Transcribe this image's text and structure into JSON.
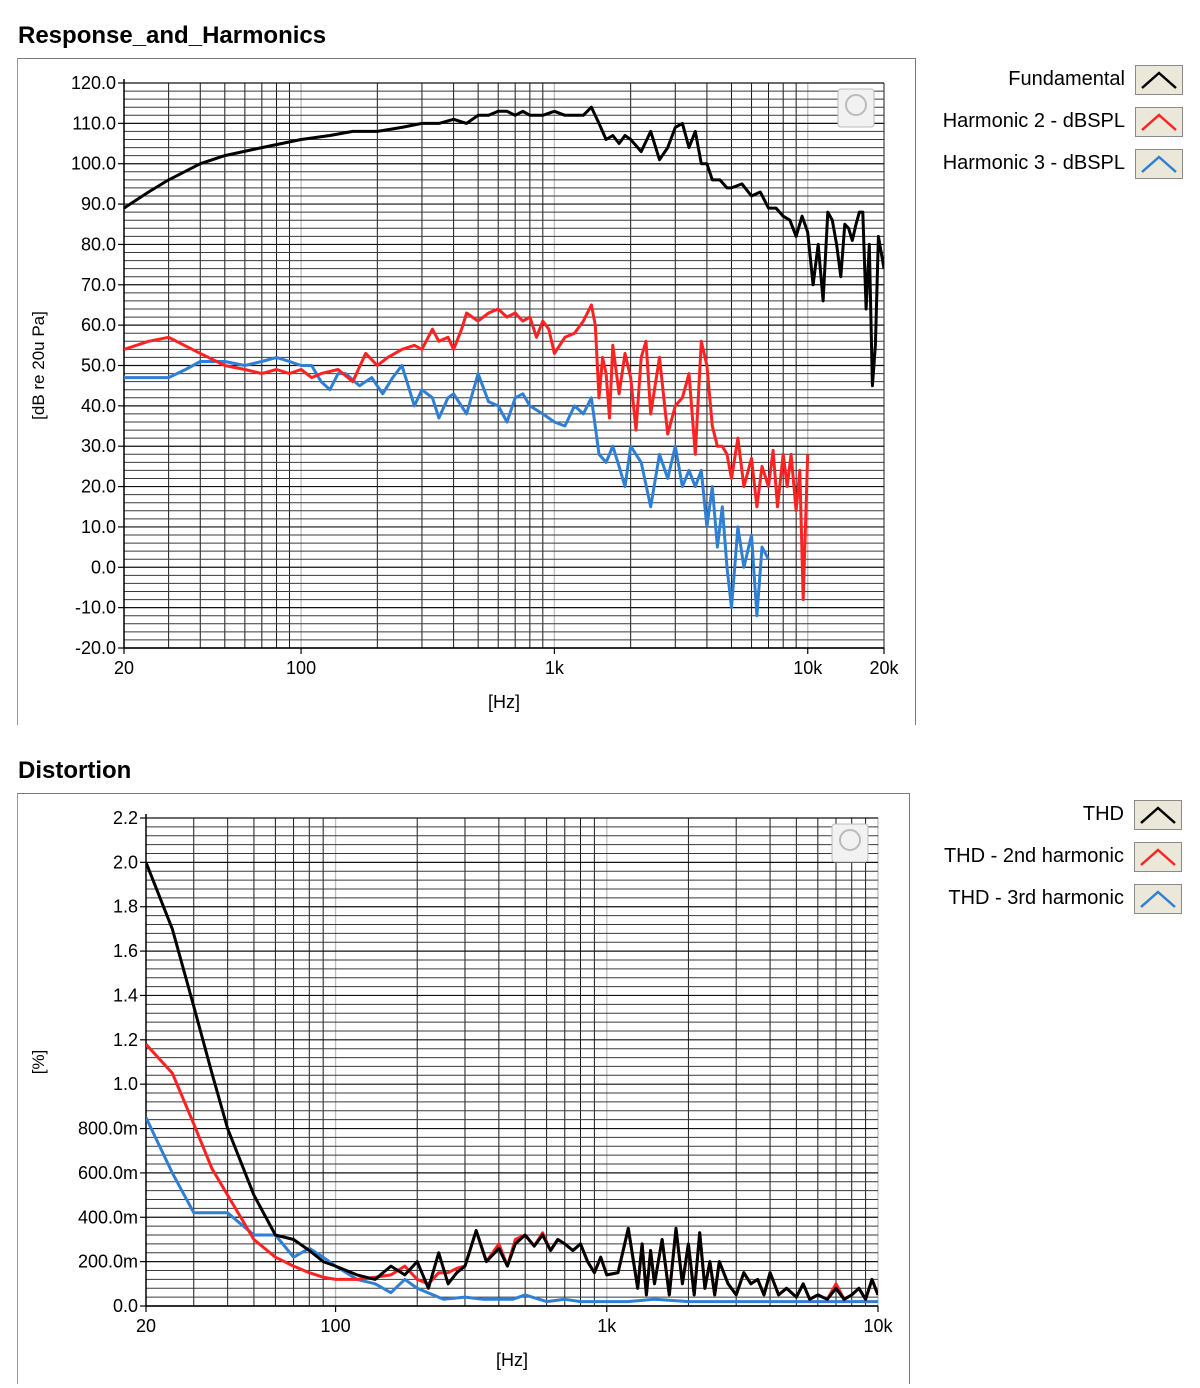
{
  "chart_data": [
    {
      "type": "line",
      "title": "Response_and_Harmonics",
      "xlabel": "[Hz]",
      "ylabel": "[dB re 20u Pa]",
      "x_scale": "log",
      "xlim": [
        20,
        20000
      ],
      "ylim": [
        -20,
        120
      ],
      "x_ticks": [
        20,
        100,
        1000,
        10000,
        20000
      ],
      "x_tick_labels": [
        "20",
        "100",
        "1k",
        "10k",
        "20k"
      ],
      "y_ticks": [
        -20,
        -10,
        0,
        10,
        20,
        30,
        40,
        50,
        60,
        70,
        80,
        90,
        100,
        110,
        120
      ],
      "y_tick_labels": [
        "-20.0",
        "-10.0",
        "0.0",
        "10.0",
        "20.0",
        "30.0",
        "40.0",
        "50.0",
        "60.0",
        "70.0",
        "80.0",
        "90.0",
        "100.0",
        "110.0",
        "120.0"
      ],
      "grid": true,
      "legend_position": "right",
      "series": [
        {
          "name": "Fundamental",
          "color": "#000000",
          "x": [
            20,
            25,
            30,
            40,
            50,
            70,
            100,
            130,
            160,
            200,
            250,
            300,
            350,
            400,
            450,
            500,
            550,
            600,
            650,
            700,
            750,
            800,
            900,
            1000,
            1100,
            1200,
            1300,
            1400,
            1500,
            1600,
            1700,
            1800,
            1900,
            2000,
            2200,
            2400,
            2600,
            2800,
            3000,
            3200,
            3400,
            3600,
            3800,
            4000,
            4200,
            4500,
            4800,
            5000,
            5500,
            6000,
            6500,
            7000,
            7500,
            8000,
            8500,
            9000,
            9500,
            10000,
            10500,
            11000,
            11500,
            12000,
            12500,
            13000,
            13500,
            14000,
            14500,
            15000,
            15500,
            16000,
            16500,
            17000,
            17500,
            18000,
            18500,
            19000,
            19500,
            20000
          ],
          "y": [
            89,
            93,
            96,
            100,
            102,
            104,
            106,
            107,
            108,
            108,
            109,
            110,
            110,
            111,
            110,
            112,
            112,
            113,
            113,
            112,
            113,
            112,
            112,
            113,
            112,
            112,
            112,
            114,
            110,
            106,
            107,
            105,
            107,
            106,
            103,
            108,
            101,
            104,
            109,
            110,
            104,
            108,
            100,
            100,
            96,
            96,
            94,
            94,
            95,
            92,
            93,
            89,
            89,
            87,
            86,
            82,
            87,
            83,
            70,
            80,
            66,
            88,
            86,
            80,
            72,
            85,
            84,
            81,
            85,
            88,
            88,
            64,
            80,
            45,
            55,
            82,
            78,
            74
          ]
        },
        {
          "name": "Harmonic 2 - dBSPL",
          "color": "#ff2222",
          "x": [
            20,
            25,
            30,
            40,
            50,
            60,
            70,
            80,
            90,
            100,
            110,
            120,
            140,
            160,
            180,
            200,
            220,
            250,
            280,
            300,
            330,
            350,
            380,
            400,
            430,
            450,
            500,
            550,
            600,
            650,
            700,
            750,
            800,
            850,
            900,
            950,
            1000,
            1100,
            1200,
            1300,
            1400,
            1450,
            1500,
            1550,
            1600,
            1650,
            1700,
            1800,
            1900,
            2000,
            2100,
            2200,
            2300,
            2400,
            2600,
            2800,
            3000,
            3200,
            3400,
            3600,
            3800,
            4000,
            4200,
            4400,
            4600,
            4800,
            5000,
            5300,
            5600,
            6000,
            6300,
            6600,
            7000,
            7300,
            7600,
            8000,
            8300,
            8600,
            9000,
            9300,
            9600,
            10000
          ],
          "y": [
            54,
            56,
            57,
            53,
            50,
            49,
            48,
            49,
            48,
            49,
            47,
            48,
            49,
            46,
            53,
            50,
            52,
            54,
            55,
            54,
            59,
            56,
            57,
            54,
            59,
            63,
            61,
            63,
            64,
            62,
            63,
            61,
            62,
            57,
            61,
            59,
            53,
            57,
            58,
            61,
            65,
            60,
            42,
            52,
            48,
            37,
            55,
            43,
            53,
            47,
            34,
            52,
            56,
            38,
            52,
            33,
            40,
            42,
            48,
            28,
            56,
            50,
            35,
            30,
            30,
            28,
            22,
            32,
            20,
            27,
            15,
            25,
            20,
            29,
            15,
            28,
            20,
            28,
            14,
            24,
            -8,
            28
          ]
        },
        {
          "name": "Harmonic 3 - dBSPL",
          "color": "#2f7fd4",
          "x": [
            20,
            25,
            30,
            35,
            40,
            45,
            50,
            60,
            70,
            80,
            90,
            100,
            110,
            120,
            130,
            140,
            150,
            170,
            190,
            210,
            230,
            250,
            280,
            300,
            330,
            350,
            380,
            400,
            450,
            500,
            550,
            600,
            650,
            700,
            750,
            800,
            900,
            1000,
            1100,
            1200,
            1300,
            1400,
            1500,
            1600,
            1700,
            1800,
            1900,
            2000,
            2200,
            2400,
            2600,
            2800,
            3000,
            3200,
            3400,
            3600,
            3800,
            4000,
            4200,
            4400,
            4600,
            4800,
            5000,
            5300,
            5600,
            6000,
            6300,
            6600,
            7000
          ],
          "y": [
            47,
            47,
            47,
            49,
            51,
            51,
            51,
            50,
            51,
            52,
            51,
            50,
            50,
            46,
            44,
            48,
            48,
            45,
            47,
            43,
            47,
            50,
            40,
            44,
            42,
            37,
            42,
            43,
            38,
            48,
            41,
            40,
            36,
            42,
            43,
            40,
            38,
            36,
            35,
            40,
            38,
            42,
            28,
            26,
            30,
            25,
            20,
            30,
            26,
            15,
            28,
            22,
            30,
            20,
            24,
            20,
            24,
            10,
            20,
            5,
            15,
            0,
            -10,
            10,
            0,
            8,
            -12,
            5,
            2
          ]
        }
      ]
    },
    {
      "type": "line",
      "title": "Distortion",
      "xlabel": "[Hz]",
      "ylabel": "[%]",
      "x_scale": "log",
      "xlim": [
        20,
        10000
      ],
      "ylim": [
        0,
        2.2
      ],
      "x_ticks": [
        20,
        100,
        1000,
        10000
      ],
      "x_tick_labels": [
        "20",
        "100",
        "1k",
        "10k"
      ],
      "y_ticks": [
        0,
        0.2,
        0.4,
        0.6,
        0.8,
        1.0,
        1.2,
        1.4,
        1.6,
        1.8,
        2.0,
        2.2
      ],
      "y_tick_labels": [
        "0.0",
        "200.0m",
        "400.0m",
        "600.0m",
        "800.0m",
        "1.0",
        "1.2",
        "1.4",
        "1.6",
        "1.8",
        "2.0",
        "2.2"
      ],
      "grid": true,
      "legend_position": "right",
      "series": [
        {
          "name": "THD",
          "color": "#000000",
          "x": [
            20,
            25,
            30,
            35,
            40,
            50,
            60,
            70,
            80,
            90,
            100,
            120,
            140,
            160,
            180,
            200,
            220,
            240,
            260,
            280,
            300,
            330,
            360,
            400,
            430,
            460,
            500,
            540,
            580,
            620,
            660,
            700,
            750,
            800,
            850,
            900,
            950,
            1000,
            1100,
            1200,
            1300,
            1350,
            1400,
            1450,
            1500,
            1600,
            1700,
            1800,
            1900,
            2000,
            2100,
            2200,
            2300,
            2400,
            2500,
            2600,
            2800,
            3000,
            3200,
            3400,
            3600,
            3800,
            4000,
            4300,
            4600,
            5000,
            5300,
            5600,
            6000,
            6500,
            7000,
            7500,
            8000,
            8500,
            9000,
            9500,
            10000
          ],
          "y": [
            2.0,
            1.7,
            1.35,
            1.05,
            0.8,
            0.5,
            0.32,
            0.3,
            0.25,
            0.2,
            0.18,
            0.14,
            0.12,
            0.18,
            0.14,
            0.2,
            0.08,
            0.24,
            0.1,
            0.15,
            0.18,
            0.34,
            0.2,
            0.26,
            0.18,
            0.28,
            0.32,
            0.27,
            0.32,
            0.25,
            0.3,
            0.28,
            0.25,
            0.28,
            0.2,
            0.15,
            0.22,
            0.14,
            0.15,
            0.35,
            0.08,
            0.28,
            0.05,
            0.25,
            0.1,
            0.3,
            0.05,
            0.35,
            0.1,
            0.28,
            0.05,
            0.33,
            0.08,
            0.2,
            0.05,
            0.2,
            0.1,
            0.05,
            0.15,
            0.1,
            0.12,
            0.05,
            0.15,
            0.05,
            0.08,
            0.04,
            0.1,
            0.03,
            0.05,
            0.03,
            0.08,
            0.03,
            0.05,
            0.08,
            0.03,
            0.12,
            0.05
          ]
        },
        {
          "name": "THD - 2nd harmonic",
          "color": "#ff2222",
          "x": [
            20,
            25,
            30,
            35,
            40,
            50,
            60,
            70,
            80,
            90,
            100,
            120,
            140,
            160,
            180,
            200,
            220,
            240,
            260,
            280,
            300,
            330,
            360,
            400,
            430,
            460,
            500,
            540,
            580,
            620,
            660,
            700,
            750,
            800,
            850,
            900,
            950,
            1000,
            1100,
            1200,
            1300,
            1350,
            1400,
            1450,
            1500,
            1600,
            1700,
            1800,
            1900,
            2000,
            2100,
            2200,
            2300,
            2400,
            2500,
            2600,
            2800,
            3000,
            3200,
            3400,
            3600,
            3800,
            4000,
            4300,
            4600,
            5000,
            5300,
            5600,
            6000,
            6500,
            7000,
            7500,
            8000,
            8500,
            9000,
            9500,
            10000
          ],
          "y": [
            1.18,
            1.05,
            0.82,
            0.62,
            0.5,
            0.3,
            0.22,
            0.18,
            0.15,
            0.13,
            0.12,
            0.12,
            0.13,
            0.14,
            0.18,
            0.12,
            0.1,
            0.15,
            0.15,
            0.17,
            0.18,
            0.34,
            0.2,
            0.28,
            0.18,
            0.3,
            0.32,
            0.27,
            0.33,
            0.25,
            0.3,
            0.28,
            0.25,
            0.28,
            0.2,
            0.15,
            0.22,
            0.14,
            0.15,
            0.35,
            0.08,
            0.28,
            0.05,
            0.25,
            0.1,
            0.3,
            0.05,
            0.35,
            0.1,
            0.28,
            0.05,
            0.33,
            0.08,
            0.2,
            0.05,
            0.2,
            0.1,
            0.05,
            0.15,
            0.1,
            0.12,
            0.05,
            0.15,
            0.05,
            0.08,
            0.04,
            0.1,
            0.03,
            0.05,
            0.03,
            0.1,
            0.03,
            0.05,
            0.08,
            0.03,
            0.12,
            0.05
          ]
        },
        {
          "name": "THD - 3rd harmonic",
          "color": "#2f7fd4",
          "x": [
            20,
            25,
            30,
            35,
            40,
            50,
            60,
            70,
            80,
            90,
            100,
            120,
            140,
            160,
            180,
            200,
            250,
            300,
            350,
            400,
            450,
            500,
            600,
            700,
            800,
            900,
            1000,
            1200,
            1500,
            2000,
            2500,
            3000,
            4000,
            5000,
            6000,
            7000,
            8000,
            9000,
            10000
          ],
          "y": [
            0.85,
            0.6,
            0.42,
            0.42,
            0.42,
            0.32,
            0.32,
            0.22,
            0.26,
            0.22,
            0.18,
            0.12,
            0.1,
            0.06,
            0.12,
            0.08,
            0.03,
            0.04,
            0.03,
            0.03,
            0.03,
            0.05,
            0.02,
            0.03,
            0.02,
            0.02,
            0.02,
            0.02,
            0.03,
            0.02,
            0.02,
            0.02,
            0.02,
            0.02,
            0.02,
            0.02,
            0.02,
            0.02,
            0.02
          ]
        }
      ]
    }
  ]
}
